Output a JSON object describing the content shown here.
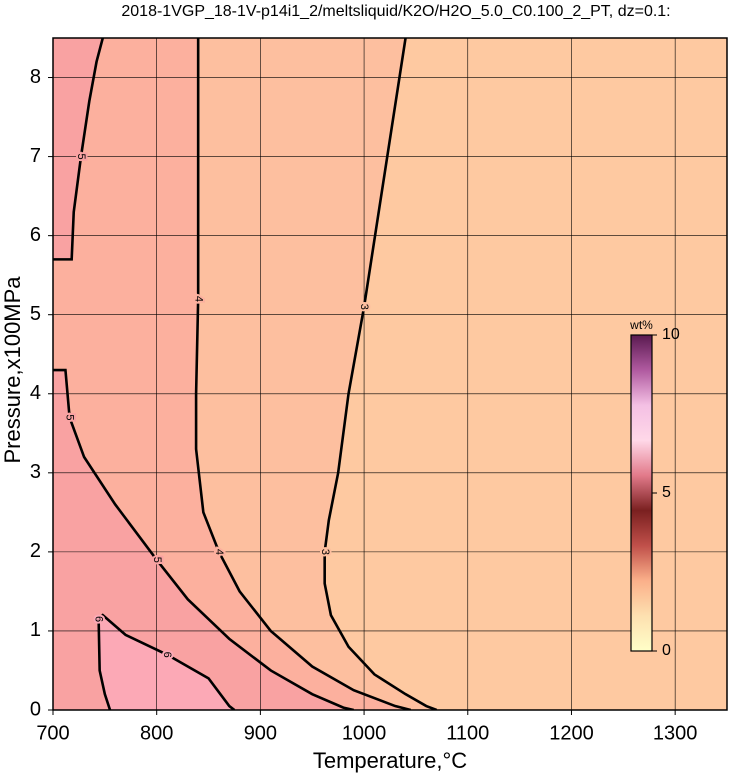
{
  "chart_data": {
    "type": "contour",
    "title": "2018-1VGP_18-1V-p14i1_2/meltsliquid/K2O/H2O_5.0_C0.100_2_PT, dz=0.1:",
    "x_label": "Temperature,°C",
    "y_label": "Pressure,x100MPa",
    "xlim": [
      700,
      1350
    ],
    "ylim": [
      0,
      8.5
    ],
    "xticks": [
      700,
      800,
      900,
      1000,
      1100,
      1200,
      1300
    ],
    "yticks": [
      0,
      1,
      2,
      3,
      4,
      5,
      6,
      7,
      8
    ],
    "grid": true,
    "background": "#fec9a1",
    "contours": [
      {
        "level": 3,
        "label": "3",
        "fill": "#fdbf9f",
        "x": [
          1040,
          1020,
          1000,
          985,
          975,
          966,
          962,
          962,
          968,
          985,
          1010,
          1040,
          1060,
          1070
        ],
        "y": [
          8.5,
          6.8,
          5.1,
          4.0,
          3.0,
          2.4,
          2.0,
          1.6,
          1.2,
          0.8,
          0.45,
          0.2,
          0.05,
          0
        ]
      },
      {
        "level": 4,
        "label": "4",
        "fill": "#fcb09e",
        "x": [
          840,
          840,
          840,
          838,
          838,
          845,
          860,
          880,
          910,
          950,
          990,
          1030,
          1045
        ],
        "y": [
          8.5,
          7.0,
          5.2,
          4.0,
          3.3,
          2.5,
          2.0,
          1.5,
          1.0,
          0.55,
          0.25,
          0.05,
          0
        ]
      },
      {
        "level": 5,
        "label": "5",
        "fill": "#f9a2a2",
        "x": [
          700,
          712,
          716,
          730,
          760,
          800,
          830,
          870,
          910,
          950,
          980,
          990
        ],
        "y": [
          4.3,
          4.3,
          3.7,
          3.2,
          2.6,
          1.9,
          1.4,
          0.9,
          0.5,
          0.2,
          0.03,
          0
        ]
      },
      {
        "level": 5,
        "label": "5",
        "fill": "#f9a2a2",
        "x": [
          700,
          718,
          720,
          727,
          735,
          742,
          748
        ],
        "y": [
          5.7,
          5.7,
          6.3,
          7.0,
          7.7,
          8.2,
          8.5
        ]
      },
      {
        "level": 6,
        "label": "6",
        "fill": "#fca9b6",
        "x": [
          755,
          750,
          745,
          744,
          748,
          770,
          810,
          850,
          870,
          875
        ],
        "y": [
          0,
          0.2,
          0.5,
          1.15,
          1.2,
          0.95,
          0.7,
          0.4,
          0.05,
          0
        ]
      }
    ],
    "colorbar": {
      "label": "wt%",
      "lim": [
        0,
        10
      ],
      "ticks": [
        0,
        5,
        10
      ],
      "colors": [
        "#ffffc8",
        "#fde0b0",
        "#fbb08a",
        "#c0504a",
        "#7a2020",
        "#e27a8a",
        "#ffd8e8",
        "#f4c0e4",
        "#b05aa0",
        "#5a1a50"
      ]
    }
  }
}
